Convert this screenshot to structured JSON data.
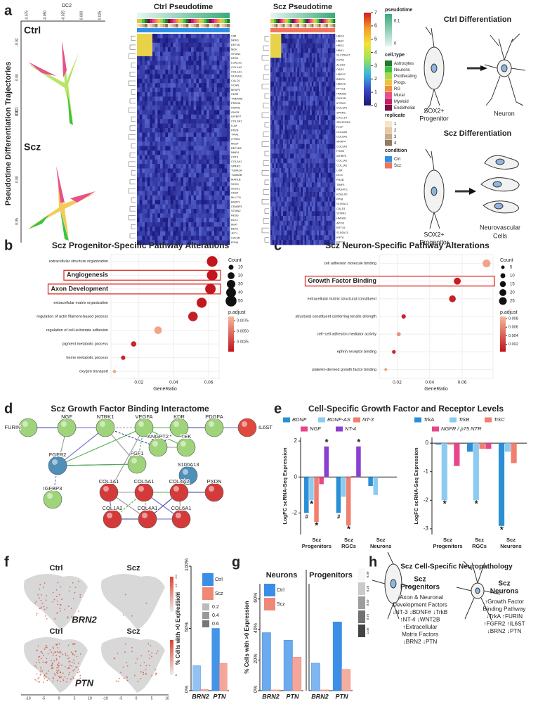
{
  "panel_labels": [
    "a",
    "b",
    "c",
    "d",
    "e",
    "f",
    "g",
    "h"
  ],
  "panel_a": {
    "ylabel": "Pseudotime Differentiation Trajectories",
    "dc2": "DC2",
    "dc1": "DC1",
    "dc2_ticks": [
      "-0.075",
      "-0.050",
      "-0.025",
      "0.000",
      "0.025"
    ],
    "ctrl_dc1_ticks": [
      "-0.02",
      "0.00",
      "0.02"
    ],
    "scz_dc1_ticks": [
      "0.00",
      "0.05"
    ],
    "ctrl": "Ctrl",
    "scz": "Scz",
    "ctrl_heatmap_title": "Ctrl Pseudotime",
    "scz_heatmap_title": "Scz Pseudotime",
    "ctrl_genes": [
      "VIM",
      "NPM1",
      "EEF1D",
      "MDK",
      "STMN1",
      "HES1",
      "LGALS1",
      "COL1A2",
      "COL1A1",
      "S100A11",
      "CALD1",
      "VCAN",
      "MFAP2",
      "CD99",
      "TMEM98",
      "PRDX6",
      "HSPB1",
      "GNG5",
      "IGFBP7",
      "COL3A1",
      "LUM",
      "FRZB",
      "TPM1",
      "CYR61",
      "MEST",
      "EEF1B2",
      "NME4",
      "CST3",
      "COL3A1",
      "SPARC",
      "TUBA1A",
      "TUBB2B",
      "MAP1B",
      "SOX4",
      "SOX11",
      "CD24",
      "MLLT11",
      "BASP1",
      "CRABP1",
      "STMN2",
      "HES6",
      "DLK1",
      "MIAT",
      "BEX1",
      "JPT1",
      "CALM1",
      "RTN4"
    ],
    "scz_genes": [
      "HBG2",
      "HBA2",
      "HBG1",
      "HBA1",
      "SLC25A37",
      "GYPA",
      "ALAS2",
      "OAS2",
      "UBE2C",
      "BIRC5",
      "UBE2S",
      "PTTG1",
      "HMGB2",
      "CKS1B",
      "IFITM3",
      "COL3A1",
      "SPARC",
      "CXCL14",
      "SELENOM",
      "PLTP",
      "COL6A2",
      "COL6A1",
      "MFAP4",
      "COL5A1",
      "PXDN",
      "IGFBP3",
      "COL1A1",
      "COL1A2",
      "LUM",
      "DCN",
      "FRZB",
      "TIMP1",
      "RASAC1",
      "KDELR2",
      "PPIB",
      "S100A11",
      "CALD1",
      "STMN1",
      "HMGB1",
      "APOE",
      "KRT19",
      "S100A13",
      "KRT8",
      "KRT18"
    ],
    "colorbar_ticks": [
      0,
      1,
      2,
      3,
      4,
      5,
      6,
      7
    ],
    "colorbar_colors": [
      "#1a1a6e",
      "#3a46c8",
      "#37b6e0",
      "#9be15d",
      "#f5e33a",
      "#f29a2e",
      "#d7191c"
    ],
    "pseudotime": {
      "title": "pseudotime",
      "ticks": [
        "0.1",
        "0"
      ],
      "colors": [
        "#3aaa7c",
        "#e8f6f2"
      ]
    },
    "cell_type": {
      "title": "cell.type",
      "names": [
        "Astrocytes",
        "Neurons",
        "Proliferating",
        "Progs.",
        "RG",
        "Mural",
        "Myeloid",
        "Endothelial"
      ],
      "colors": [
        "#1f7a2a",
        "#3cc43c",
        "#a8d84a",
        "#f0c23c",
        "#f08f3a",
        "#e8508a",
        "#c81e6a",
        "#7a1040"
      ]
    },
    "replicate": {
      "title": "replicate",
      "names": [
        "1",
        "2",
        "3",
        "4"
      ],
      "colors": [
        "#f7e3c6",
        "#e7c9a4",
        "#c9a98a",
        "#8f7a66"
      ]
    },
    "condition": {
      "title": "condition",
      "names": [
        "Ctrl",
        "Scz"
      ],
      "colors": [
        "#2f8ee6",
        "#f0745e"
      ]
    },
    "ctrl_diff_title": "Ctrl Differentiation",
    "scz_diff_title": "Scz Differentiation",
    "progenitor": [
      "SOX2+",
      "Progenitor"
    ],
    "progenitor2": [
      "SOX2+",
      "Progenitor"
    ],
    "neuron": "Neuron",
    "neurovascular": [
      "Neurovascular",
      "Cells"
    ]
  },
  "chart_data": [
    {
      "type": "dot",
      "title": "Scz Progenitor-Specific Pathway Alterations",
      "categories": [
        "extracellular structure organization",
        "Angiogenesis",
        "Axon Development",
        "extracellular matrix organization",
        "regulation of actin filament-based process",
        "regulation of cell-substrate adhesion",
        "pigment metabolic process",
        "heme metabolic process",
        "oxygen transport"
      ],
      "x": [
        0.062,
        0.062,
        0.061,
        0.056,
        0.051,
        0.031,
        0.017,
        0.011,
        0.006
      ],
      "sizes": [
        48,
        47,
        46,
        42,
        38,
        24,
        12,
        8,
        5
      ],
      "colors_value": [
        0.0003,
        0.0003,
        0.0004,
        0.0004,
        0.0008,
        0.0075,
        0.0012,
        0.0012,
        0.0078
      ],
      "highlight": [
        1,
        2
      ],
      "xlim": [
        0.004,
        0.066
      ],
      "xticks": [
        0.02,
        0.04,
        0.06
      ],
      "xlabel": "GeneRatio",
      "size_legend": {
        "title": "Count",
        "values": [
          10,
          20,
          30,
          40,
          50
        ]
      },
      "color_legend": {
        "title": "p.adjust",
        "lim": [
          0.0002,
          0.0085
        ],
        "ticks": [
          0.0025,
          {
            "value": 0.005,
            "label": "0.0050"
          },
          0.0075
        ],
        "colors": [
          "#c0141c",
          "#f7b99a"
        ]
      }
    },
    {
      "type": "dot",
      "title": "Scz Neuron-Specific Pathway Alterations",
      "categories": [
        "cell adhesion molecule binding",
        "Growth Factor Binding",
        "extracellular matrix structural constituent",
        "structural constituent conferring tensile strength",
        "cell−cell adhesion mediator activity",
        "ephrin receptor binding",
        "platelet−derived growth factor binding"
      ],
      "x": [
        0.075,
        0.057,
        0.054,
        0.024,
        0.021,
        0.018,
        0.013
      ],
      "sizes": [
        26,
        20,
        19,
        8,
        7,
        6,
        4
      ],
      "colors_value": [
        0.0075,
        0.0008,
        0.0009,
        0.0012,
        0.0065,
        0.0015,
        0.0075
      ],
      "highlight": [
        1
      ],
      "xlim": [
        0.009,
        0.079
      ],
      "xticks": [
        0.02,
        0.04,
        0.06
      ],
      "xlabel": "GeneRatio",
      "size_legend": {
        "title": "Count",
        "values": [
          5,
          10,
          15,
          20,
          25
        ]
      },
      "color_legend": {
        "title": "p.adjust",
        "lim": [
          0.0003,
          0.0085
        ],
        "ticks": [
          0.002,
          0.004,
          0.006,
          0.008
        ],
        "colors": [
          "#c0141c",
          "#f7b99a"
        ]
      }
    },
    {
      "type": "grouped_bar",
      "title": "Cell-Specific Growth Factor and Receptor Levels",
      "categories": [
        [
          "Scz",
          "Progenitors"
        ],
        [
          "Scz",
          "RGCs"
        ],
        [
          "Scz",
          "Neurons"
        ]
      ],
      "series": [
        {
          "name": "BDNF",
          "color": "#2b8fd6",
          "values": [
            -2.0,
            -2.0,
            -0.5
          ]
        },
        {
          "name": "BDNF-AS",
          "color": "#8ccbf0",
          "values": [
            -1.3,
            -1.1,
            -1.0
          ]
        },
        {
          "name": "NT-3",
          "color": "#f07f6e",
          "values": [
            -2.5,
            -2.7,
            0
          ]
        },
        {
          "name": "NGF",
          "color": "#e8468a",
          "values": [
            -0.4,
            0.05,
            0
          ]
        },
        {
          "name": "NT-4",
          "color": "#8a3fd1",
          "values": [
            1.7,
            1.7,
            0
          ]
        }
      ],
      "annotations": [
        {
          "text": "#",
          "series": 0,
          "category": 0
        },
        {
          "text": "*",
          "series": 1,
          "category": 0
        },
        {
          "text": "*",
          "series": 2,
          "category": 0
        },
        {
          "text": "*",
          "series": 4,
          "category": 0
        },
        {
          "text": "#",
          "series": 0,
          "category": 1
        },
        {
          "text": "*",
          "series": 2,
          "category": 1
        },
        {
          "text": "*",
          "series": 4,
          "category": 1
        }
      ],
      "ylabel": "LogFC scRNA-Seq Expression",
      "ylim": [
        -3.2,
        2.2
      ],
      "yticks": [
        -2,
        0,
        2
      ]
    },
    {
      "type": "grouped_bar",
      "categories": [
        [
          "Scz",
          "Progenitors"
        ],
        [
          "Scz",
          "RGCs"
        ],
        [
          "Scz",
          "Neurons"
        ]
      ],
      "series": [
        {
          "name": "TrkA",
          "color": "#2b8fd6",
          "values": [
            -0.05,
            -0.3,
            -2.9
          ]
        },
        {
          "name": "TrkB",
          "color": "#8ccbf0",
          "values": [
            -2.0,
            -2.0,
            -0.3
          ]
        },
        {
          "name": "TrkC",
          "color": "#f07f6e",
          "values": [
            -0.05,
            -0.2,
            -0.7
          ]
        },
        {
          "name": "NGFR / p75 NTR",
          "color": "#e8468a",
          "values": [
            -0.8,
            -0.2,
            0
          ]
        }
      ],
      "annotations": [
        {
          "text": "*",
          "series": 1,
          "category": 0
        },
        {
          "text": "*",
          "series": 1,
          "category": 1
        },
        {
          "text": "*",
          "series": 0,
          "category": 2
        }
      ],
      "ylabel": "LogFC scRNA-Seq Expression",
      "ylim": [
        -3.2,
        0.2
      ],
      "yticks": [
        -3,
        -2,
        -1,
        0
      ]
    },
    {
      "type": "pair_bar",
      "categories": [
        "BRN2",
        "PTN"
      ],
      "series": [
        {
          "name": "Ctrl",
          "color": "#3a8ee6",
          "shades": [
            0.2,
            0.6
          ],
          "values": [
            20,
            50
          ]
        },
        {
          "name": "Scz",
          "color": "#f08878",
          "shades": [
            0.2,
            0.4
          ],
          "values": [
            1,
            22
          ]
        }
      ],
      "ylabel": "% Cells with >0 Expression",
      "ylim": [
        0,
        100
      ],
      "yticks": [
        {
          "value": 0,
          "label": "0%"
        },
        {
          "value": 50,
          "label": "50%"
        },
        {
          "value": 100,
          "label": "100%"
        }
      ],
      "shade_legend": [
        0.2,
        0.4,
        0.6
      ]
    },
    {
      "type": "pair_bar",
      "title": "Neurons",
      "categories": [
        "BRN2",
        "PTN"
      ],
      "series": [
        {
          "name": "Ctrl",
          "color": "#3a8ee6",
          "shades": [
            0.4,
            0.4
          ],
          "values": [
            38,
            33
          ]
        },
        {
          "name": "Scz",
          "color": "#f08878",
          "shades": [
            0.2,
            0.4
          ],
          "values": [
            0.5,
            22
          ]
        }
      ],
      "ylabel": "% Cells with >0 Expression",
      "ylim": [
        0,
        70
      ],
      "yticks": [
        {
          "value": 0,
          "label": "0%"
        },
        {
          "value": 20,
          "label": "20%"
        },
        {
          "value": 40,
          "label": "40%"
        },
        {
          "value": 60,
          "label": "60%"
        }
      ]
    },
    {
      "type": "pair_bar",
      "title": "Progenitors",
      "categories": [
        "BRN2",
        "PTN"
      ],
      "series": [
        {
          "name": "Ctrl",
          "color": "#3a8ee6",
          "shades": [
            0.3,
            0.7
          ],
          "values": [
            18,
            45
          ]
        },
        {
          "name": "Scz",
          "color": "#f08878",
          "shades": [
            0.2,
            0.35
          ],
          "values": [
            0.5,
            14
          ]
        }
      ],
      "ylim": [
        0,
        70
      ],
      "shade_legend": [
        {
          "value": 0,
          "label": "0.00"
        },
        {
          "value": 0.25,
          "label": "0.25"
        },
        {
          "value": 0.5,
          "label": "0.50"
        },
        {
          "value": 0.75,
          "label": "0.75"
        },
        {
          "value": 1,
          "label": "1.00"
        }
      ]
    }
  ],
  "panel_d": {
    "title": "Scz Growth Factor Binding Interactome",
    "nodes": [
      {
        "label": "FURIN",
        "color": "#9fd47a"
      },
      {
        "label": "NGF",
        "color": "#9fd47a"
      },
      {
        "label": "NTRK1",
        "color": "#9fd47a"
      },
      {
        "label": "VEGFA",
        "color": "#9fd47a"
      },
      {
        "label": "KDR",
        "color": "#9fd47a"
      },
      {
        "label": "PDGFA",
        "color": "#9fd47a"
      },
      {
        "label": "IL6ST",
        "color": "#e0483f"
      },
      {
        "label": "ANGPT2",
        "color": "#9fd47a"
      },
      {
        "label": "TEK",
        "color": "#9fd47a"
      },
      {
        "label": "FGF1",
        "color": "#9fd47a"
      },
      {
        "label": "FGFR2",
        "color": "#4f8fb8"
      },
      {
        "label": "S100A13",
        "color": "#4f8fb8"
      },
      {
        "label": "IGFBP3",
        "color": "#9fd47a"
      },
      {
        "label": "COL1A1",
        "color": "#d43a3a"
      },
      {
        "label": "COL5A1",
        "color": "#d43a3a"
      },
      {
        "label": "COL4A2",
        "color": "#d43a3a"
      },
      {
        "label": "PXDN",
        "color": "#d43a3a"
      },
      {
        "label": "COL1A2",
        "color": "#d43a3a"
      },
      {
        "label": "COL4A1",
        "color": "#d43a3a"
      },
      {
        "label": "COL6A1",
        "color": "#d43a3a"
      }
    ]
  },
  "panel_f": {
    "ctrl1": "Ctrl",
    "scz1": "Scz",
    "gene1": "BRN2",
    "ctrl2": "Ctrl",
    "scz2": "Scz",
    "gene2": "PTN",
    "scale1": [
      "0.0",
      "0.5",
      "1.0",
      "1.5",
      "2.0"
    ],
    "scale2": [
      "0",
      "1",
      "2",
      "3"
    ],
    "xticks": [
      "-10",
      "-5",
      "0",
      "5",
      "10"
    ],
    "legend": [
      "Ctrl",
      "Scz"
    ]
  },
  "panel_g": {
    "legend": [
      "Ctrl",
      "Scz"
    ]
  },
  "panel_h": {
    "title": "Scz Cell-Specific Neuropathology",
    "left_title": [
      "Scz",
      "Progenitors"
    ],
    "left_lines": [
      "↓Axon & Neuronal",
      "Development Factors",
      "↓NT-3 ↓BDNF# ↓TrkB",
      "↑NT-4 ↓WNT2B",
      "↑Extracellular",
      "Matrix Factors",
      "↓BRN2 ↓PTN"
    ],
    "right_title": [
      "Scz",
      "Neurons"
    ],
    "right_lines": [
      "↑Growth Factor",
      "Binding Pathway",
      "↓TrkA ↑FURIN",
      "↑FGFR2 ↑IL6ST",
      "↓BRN2 ↓PTN"
    ]
  }
}
